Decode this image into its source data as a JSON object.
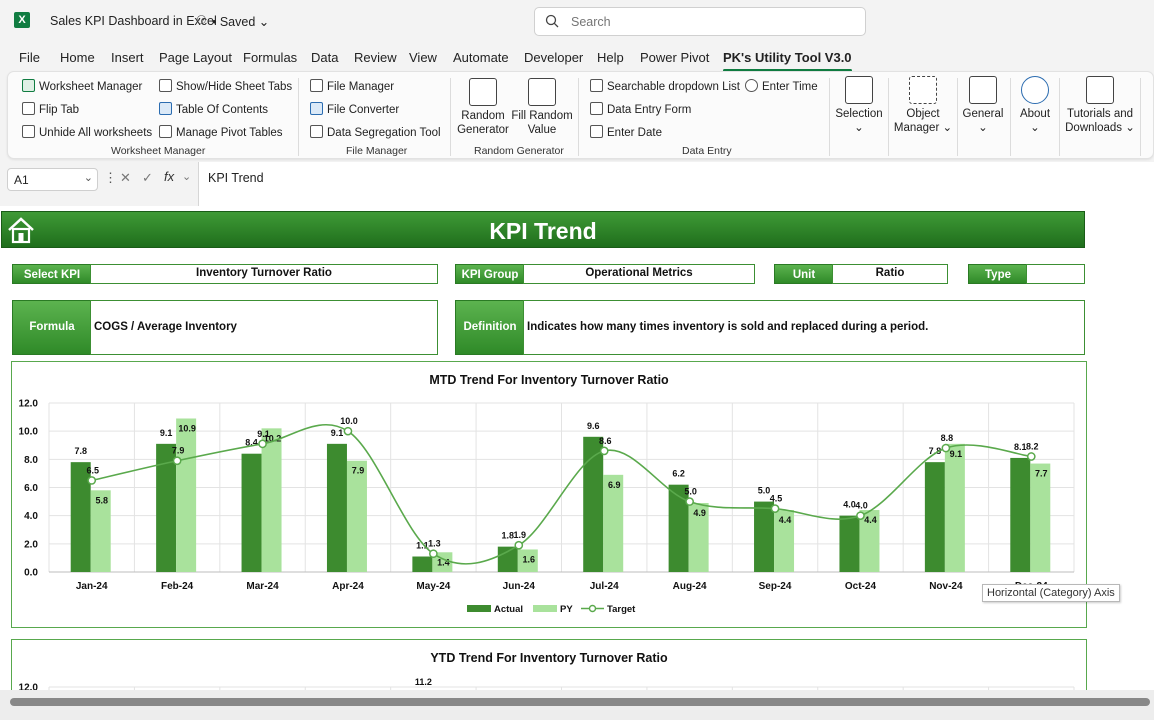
{
  "titlebar": {
    "doc_title": "Sales KPI Dashboard in Excel",
    "saved_status": "• Saved",
    "search_placeholder": "Search"
  },
  "tabs": [
    "File",
    "Home",
    "Insert",
    "Page Layout",
    "Formulas",
    "Data",
    "Review",
    "View",
    "Automate",
    "Developer",
    "Help",
    "Power Pivot",
    "PK's Utility Tool V3.0"
  ],
  "ribbon": {
    "worksheet_manager": {
      "items": [
        "Worksheet Manager",
        "Show/Hide Sheet Tabs",
        "Flip Tab",
        "Table Of Contents",
        "Unhide All worksheets",
        "Manage Pivot Tables"
      ],
      "label": "Worksheet Manager"
    },
    "file_manager": {
      "items": [
        "File Manager",
        "File Converter",
        "Data Segregation Tool"
      ],
      "label": "File Manager"
    },
    "random_generator": {
      "buttons": [
        {
          "line1": "Random",
          "line2": "Generator"
        },
        {
          "line1": "Fill Random",
          "line2": "Value"
        }
      ],
      "label": "Random Generator"
    },
    "data_entry": {
      "items": [
        "Searchable dropdown List",
        "Enter Time",
        "Data Entry Form",
        "Enter Date"
      ],
      "label": "Data Entry"
    },
    "right_buttons": [
      {
        "line1": "Selection",
        "line2": "⌄"
      },
      {
        "line1": "Object",
        "line2": "Manager ⌄"
      },
      {
        "line1": "General",
        "line2": "⌄"
      },
      {
        "line1": "About",
        "line2": "⌄"
      },
      {
        "line1": "Tutorials and",
        "line2": "Downloads ⌄"
      }
    ]
  },
  "formula_bar": {
    "cell_ref": "A1",
    "formula": "KPI Trend"
  },
  "dashboard": {
    "title": "KPI Trend",
    "select_kpi_label": "Select KPI",
    "select_kpi_value": "Inventory Turnover Ratio",
    "kpi_group_label": "KPI Group",
    "kpi_group_value": "Operational Metrics",
    "unit_label": "Unit",
    "unit_value": "Ratio",
    "type_label": "Type",
    "type_value": "",
    "formula_label": "Formula",
    "formula_value": "COGS / Average Inventory",
    "definition_label": "Definition",
    "definition_value": "Indicates how many times inventory is sold and replaced during a period."
  },
  "tooltip": "Horizontal (Category) Axis",
  "colors": {
    "actual": "#3d8b2f",
    "py": "#a9e29c",
    "target": "#5aa94c",
    "excel_green": "#107c41"
  },
  "chart_data": [
    {
      "type": "bar",
      "title": "MTD Trend For Inventory Turnover Ratio",
      "categories": [
        "Jan-24",
        "Feb-24",
        "Mar-24",
        "Apr-24",
        "May-24",
        "Jun-24",
        "Jul-24",
        "Aug-24",
        "Sep-24",
        "Oct-24",
        "Nov-24",
        "Dec-24"
      ],
      "series": [
        {
          "name": "Actual",
          "kind": "bar",
          "values": [
            7.8,
            9.1,
            8.4,
            9.1,
            1.1,
            1.8,
            9.6,
            6.2,
            5.0,
            4.0,
            7.8,
            8.1
          ]
        },
        {
          "name": "PY",
          "kind": "bar",
          "values": [
            5.8,
            10.9,
            10.2,
            7.9,
            1.4,
            1.6,
            6.9,
            4.9,
            4.4,
            4.4,
            9.1,
            7.7
          ]
        },
        {
          "name": "Target",
          "kind": "line",
          "values": [
            6.5,
            7.9,
            9.1,
            10.0,
            1.3,
            1.9,
            8.6,
            5.0,
            4.5,
            4.0,
            8.8,
            8.2
          ]
        }
      ],
      "ylim": [
        0,
        12
      ],
      "yticks": [
        "0.0",
        "2.0",
        "4.0",
        "6.0",
        "8.0",
        "10.0",
        "12.0"
      ],
      "legend": "bottom",
      "grid": true
    },
    {
      "type": "bar",
      "title": "YTD Trend For Inventory Turnover Ratio",
      "ylim": [
        0,
        12
      ],
      "yticks": [
        "12.0"
      ],
      "visible_labels": [
        "11.2"
      ]
    }
  ]
}
